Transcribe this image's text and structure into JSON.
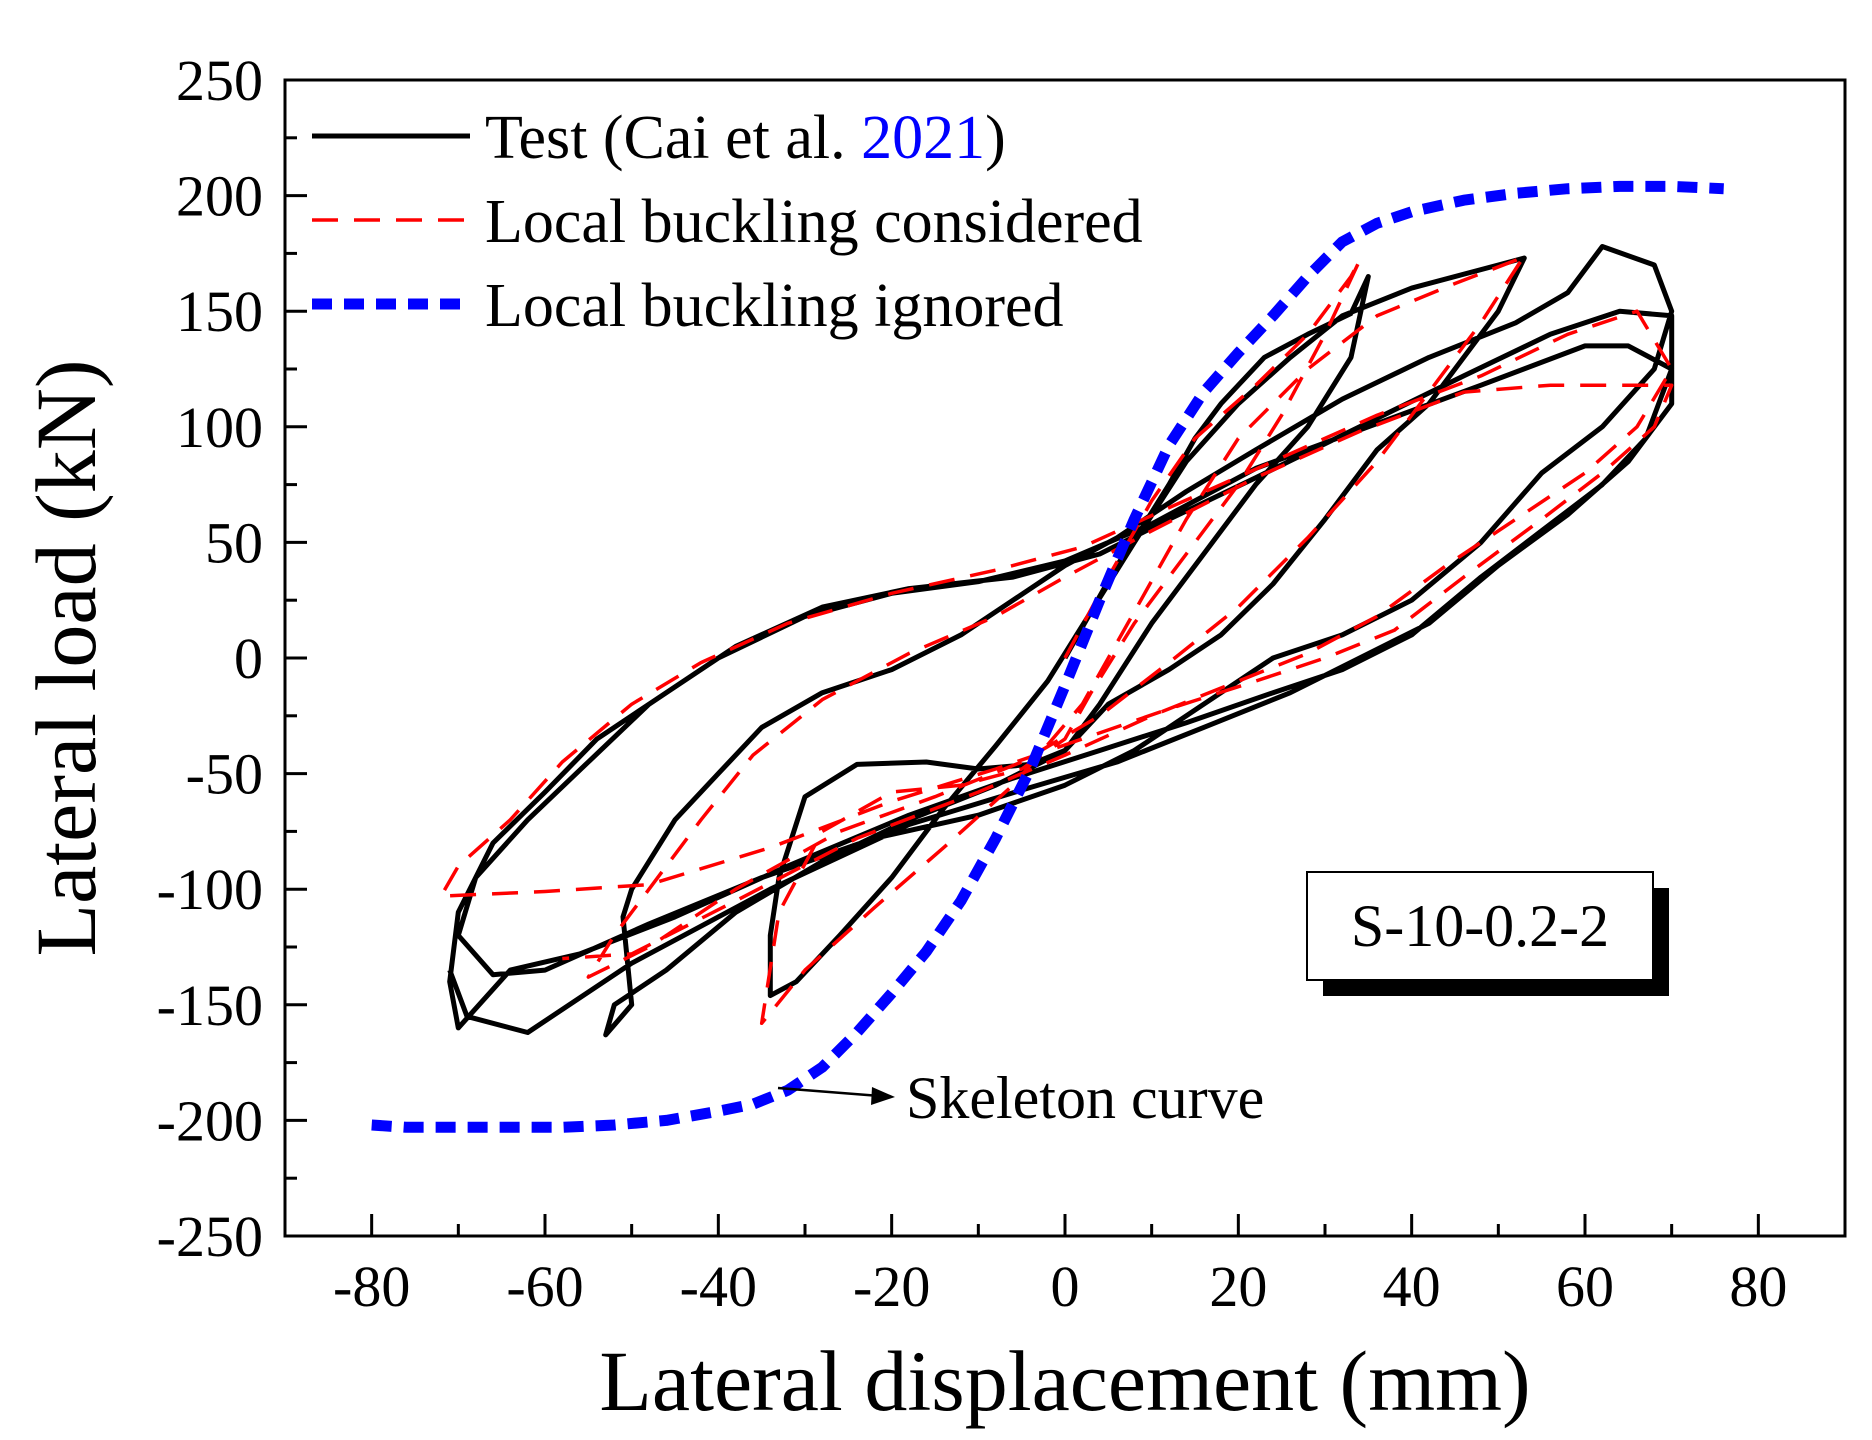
{
  "chart_data": {
    "type": "line",
    "title": "",
    "xlabel": "Lateral displacement (mm)",
    "ylabel": "Lateral load (kN)",
    "xlim": [
      -90,
      90
    ],
    "ylim": [
      -250,
      250
    ],
    "xticks": [
      -80,
      -60,
      -40,
      -20,
      0,
      20,
      40,
      60,
      80
    ],
    "yticks": [
      -250,
      -200,
      -150,
      -100,
      -50,
      0,
      50,
      100,
      150,
      200,
      250
    ],
    "grid": false,
    "legend_position": "top-left",
    "legend": [
      {
        "prefix": "Test (Cai et al. ",
        "citation": "2021",
        "suffix": ")"
      },
      {
        "label": "Local buckling considered"
      },
      {
        "label": "Local buckling ignored"
      }
    ],
    "colors": {
      "test": "#000000",
      "considered": "#ff0000",
      "ignored": "#0000ff",
      "citation": "#0000ff"
    },
    "specimen_label": "S-10-0.2-2",
    "annotation": "Skeleton curve",
    "series": [
      {
        "name": "Test (Cai et al. 2021)",
        "style": "solid",
        "points": [
          [
            0,
            0
          ],
          [
            3,
            20
          ],
          [
            6,
            40
          ],
          [
            9,
            57
          ],
          [
            12,
            75
          ],
          [
            15,
            95
          ],
          [
            18,
            110
          ],
          [
            20,
            118
          ],
          [
            23,
            130
          ],
          [
            28,
            140
          ],
          [
            33,
            149
          ],
          [
            35,
            165
          ],
          [
            33,
            130
          ],
          [
            28,
            100
          ],
          [
            22,
            75
          ],
          [
            16,
            45
          ],
          [
            10,
            15
          ],
          [
            4,
            -20
          ],
          [
            0,
            -40
          ],
          [
            -4,
            -46
          ],
          [
            -10,
            -48
          ],
          [
            -16,
            -45
          ],
          [
            -24,
            -46
          ],
          [
            -30,
            -60
          ],
          [
            -33,
            -95
          ],
          [
            -34,
            -120
          ],
          [
            -34,
            -146
          ],
          [
            -31,
            -140
          ],
          [
            -26,
            -120
          ],
          [
            -20,
            -95
          ],
          [
            -14,
            -65
          ],
          [
            -8,
            -38
          ],
          [
            -2,
            -10
          ],
          [
            3,
            20
          ],
          [
            8,
            50
          ],
          [
            14,
            85
          ],
          [
            20,
            110
          ],
          [
            26,
            130
          ],
          [
            32,
            148
          ],
          [
            40,
            160
          ],
          [
            50,
            170
          ],
          [
            53,
            173
          ],
          [
            50,
            150
          ],
          [
            46,
            130
          ],
          [
            42,
            110
          ],
          [
            36,
            90
          ],
          [
            30,
            60
          ],
          [
            24,
            32
          ],
          [
            18,
            10
          ],
          [
            12,
            -5
          ],
          [
            5,
            -20
          ],
          [
            0,
            -40
          ],
          [
            -8,
            -55
          ],
          [
            -18,
            -70
          ],
          [
            -28,
            -88
          ],
          [
            -38,
            -110
          ],
          [
            -46,
            -135
          ],
          [
            -52,
            -150
          ],
          [
            -53,
            -163
          ],
          [
            -50,
            -150
          ],
          [
            -51,
            -112
          ],
          [
            -50,
            -100
          ],
          [
            -45,
            -70
          ],
          [
            -40,
            -50
          ],
          [
            -35,
            -30
          ],
          [
            -28,
            -15
          ],
          [
            -20,
            -5
          ],
          [
            -12,
            10
          ],
          [
            -6,
            25
          ],
          [
            0,
            40
          ],
          [
            6,
            52
          ],
          [
            14,
            72
          ],
          [
            22,
            90
          ],
          [
            32,
            112
          ],
          [
            42,
            130
          ],
          [
            52,
            145
          ],
          [
            58,
            158
          ],
          [
            62,
            178
          ],
          [
            68,
            170
          ],
          [
            70,
            150
          ],
          [
            68,
            125
          ],
          [
            62,
            100
          ],
          [
            55,
            80
          ],
          [
            48,
            50
          ],
          [
            40,
            25
          ],
          [
            32,
            10
          ],
          [
            24,
            0
          ],
          [
            16,
            -20
          ],
          [
            8,
            -40
          ],
          [
            0,
            -55
          ],
          [
            -10,
            -68
          ],
          [
            -22,
            -78
          ],
          [
            -35,
            -95
          ],
          [
            -48,
            -115
          ],
          [
            -60,
            -135
          ],
          [
            -66,
            -137
          ],
          [
            -70,
            -120
          ],
          [
            -68,
            -95
          ],
          [
            -62,
            -70
          ],
          [
            -55,
            -45
          ],
          [
            -48,
            -20
          ],
          [
            -40,
            0
          ],
          [
            -30,
            18
          ],
          [
            -20,
            28
          ],
          [
            -10,
            33
          ],
          [
            0,
            42
          ],
          [
            10,
            58
          ],
          [
            22,
            82
          ],
          [
            35,
            100
          ],
          [
            48,
            118
          ],
          [
            60,
            135
          ],
          [
            65,
            135
          ],
          [
            70,
            125
          ],
          [
            67,
            95
          ],
          [
            62,
            75
          ],
          [
            55,
            55
          ],
          [
            48,
            35
          ],
          [
            40,
            10
          ],
          [
            32,
            -5
          ],
          [
            24,
            -15
          ],
          [
            14,
            -28
          ],
          [
            4,
            -40
          ],
          [
            -6,
            -52
          ],
          [
            -18,
            -68
          ],
          [
            -32,
            -90
          ],
          [
            -45,
            -112
          ],
          [
            -56,
            -128
          ],
          [
            -64,
            -135
          ],
          [
            -70,
            -160
          ],
          [
            -71,
            -140
          ],
          [
            -70,
            -110
          ],
          [
            -66,
            -80
          ],
          [
            -60,
            -58
          ],
          [
            -54,
            -35
          ],
          [
            -46,
            -15
          ],
          [
            -38,
            5
          ],
          [
            -28,
            22
          ],
          [
            -18,
            30
          ],
          [
            -6,
            35
          ],
          [
            4,
            45
          ],
          [
            12,
            60
          ],
          [
            22,
            78
          ],
          [
            34,
            100
          ],
          [
            46,
            122
          ],
          [
            56,
            140
          ],
          [
            64,
            150
          ],
          [
            70,
            148
          ],
          [
            70,
            110
          ],
          [
            65,
            85
          ],
          [
            58,
            62
          ],
          [
            50,
            40
          ],
          [
            42,
            15
          ],
          [
            34,
            0
          ],
          [
            26,
            -15
          ],
          [
            16,
            -30
          ],
          [
            6,
            -45
          ],
          [
            -4,
            -56
          ],
          [
            -18,
            -72
          ],
          [
            -34,
            -100
          ],
          [
            -50,
            -132
          ],
          [
            -62,
            -162
          ],
          [
            -69,
            -155
          ],
          [
            -71,
            -135
          ]
        ]
      },
      {
        "name": "Local buckling considered",
        "style": "dashed",
        "points": [
          [
            0,
            0
          ],
          [
            5,
            35
          ],
          [
            10,
            68
          ],
          [
            15,
            95
          ],
          [
            22,
            118
          ],
          [
            28,
            140
          ],
          [
            33,
            165
          ],
          [
            34,
            172
          ],
          [
            30,
            140
          ],
          [
            25,
            105
          ],
          [
            20,
            75
          ],
          [
            14,
            45
          ],
          [
            8,
            15
          ],
          [
            3,
            -15
          ],
          [
            0,
            -35
          ],
          [
            -5,
            -48
          ],
          [
            -12,
            -55
          ],
          [
            -20,
            -58
          ],
          [
            -28,
            -75
          ],
          [
            -33,
            -110
          ],
          [
            -35,
            -158
          ],
          [
            -30,
            -135
          ],
          [
            -22,
            -108
          ],
          [
            -14,
            -82
          ],
          [
            -6,
            -55
          ],
          [
            2,
            -20
          ],
          [
            8,
            20
          ],
          [
            14,
            60
          ],
          [
            20,
            95
          ],
          [
            28,
            125
          ],
          [
            36,
            148
          ],
          [
            45,
            162
          ],
          [
            52,
            172
          ],
          [
            53,
            174
          ],
          [
            48,
            145
          ],
          [
            42,
            115
          ],
          [
            36,
            85
          ],
          [
            28,
            52
          ],
          [
            20,
            22
          ],
          [
            12,
            -2
          ],
          [
            4,
            -25
          ],
          [
            -5,
            -45
          ],
          [
            -15,
            -60
          ],
          [
            -26,
            -75
          ],
          [
            -38,
            -100
          ],
          [
            -48,
            -125
          ],
          [
            -55,
            -138
          ],
          [
            -52,
            -120
          ],
          [
            -48,
            -100
          ],
          [
            -42,
            -70
          ],
          [
            -36,
            -42
          ],
          [
            -28,
            -18
          ],
          [
            -18,
            2
          ],
          [
            -8,
            18
          ],
          [
            0,
            35
          ],
          [
            10,
            55
          ],
          [
            22,
            78
          ],
          [
            34,
            98
          ],
          [
            46,
            115
          ],
          [
            56,
            118
          ],
          [
            62,
            118
          ],
          [
            70,
            118
          ],
          [
            68,
            100
          ],
          [
            62,
            80
          ],
          [
            55,
            60
          ],
          [
            46,
            35
          ],
          [
            38,
            12
          ],
          [
            30,
            0
          ],
          [
            22,
            -10
          ],
          [
            12,
            -22
          ],
          [
            2,
            -35
          ],
          [
            -8,
            -48
          ],
          [
            -20,
            -62
          ],
          [
            -34,
            -82
          ],
          [
            -48,
            -98
          ],
          [
            -60,
            -101
          ],
          [
            -72,
            -103
          ],
          [
            -70,
            -90
          ],
          [
            -64,
            -70
          ],
          [
            -58,
            -45
          ],
          [
            -50,
            -20
          ],
          [
            -42,
            -2
          ],
          [
            -32,
            15
          ],
          [
            -20,
            28
          ],
          [
            -8,
            38
          ],
          [
            2,
            48
          ],
          [
            12,
            65
          ],
          [
            24,
            85
          ],
          [
            36,
            105
          ],
          [
            48,
            122
          ],
          [
            58,
            140
          ],
          [
            66,
            150
          ],
          [
            70,
            125
          ],
          [
            66,
            100
          ],
          [
            60,
            80
          ],
          [
            52,
            60
          ],
          [
            44,
            40
          ],
          [
            36,
            18
          ],
          [
            28,
            2
          ],
          [
            20,
            -10
          ],
          [
            10,
            -25
          ],
          [
            0,
            -42
          ],
          [
            -10,
            -58
          ],
          [
            -24,
            -78
          ],
          [
            -38,
            -105
          ],
          [
            -50,
            -128
          ],
          [
            -58,
            -130
          ]
        ]
      },
      {
        "name": "Local buckling ignored",
        "style": "dotted",
        "points": [
          [
            -80,
            -202
          ],
          [
            -76,
            -203
          ],
          [
            -70,
            -203
          ],
          [
            -64,
            -203
          ],
          [
            -58,
            -203
          ],
          [
            -52,
            -202
          ],
          [
            -46,
            -200
          ],
          [
            -40,
            -196
          ],
          [
            -36,
            -193
          ],
          [
            -32,
            -187
          ],
          [
            -28,
            -177
          ],
          [
            -24,
            -162
          ],
          [
            -20,
            -145
          ],
          [
            -16,
            -127
          ],
          [
            -12,
            -105
          ],
          [
            -8,
            -78
          ],
          [
            -4,
            -48
          ],
          [
            0,
            -12
          ],
          [
            4,
            25
          ],
          [
            8,
            60
          ],
          [
            12,
            92
          ],
          [
            16,
            115
          ],
          [
            20,
            132
          ],
          [
            24,
            148
          ],
          [
            28,
            165
          ],
          [
            32,
            180
          ],
          [
            36,
            188
          ],
          [
            40,
            193
          ],
          [
            46,
            198
          ],
          [
            52,
            201
          ],
          [
            58,
            203
          ],
          [
            64,
            204
          ],
          [
            70,
            204
          ],
          [
            76,
            203
          ]
        ]
      }
    ]
  }
}
